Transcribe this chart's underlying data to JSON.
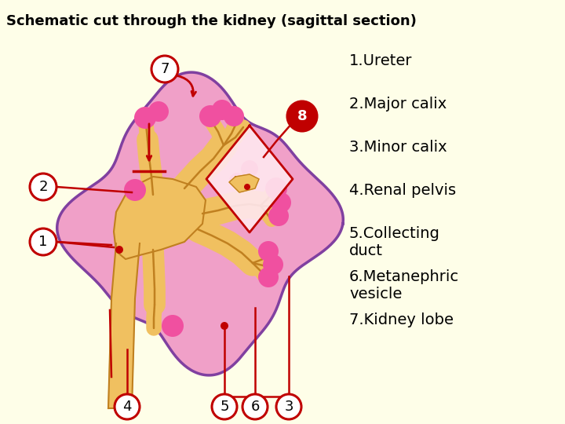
{
  "title": "Schematic cut through the kidney (sagittal section)",
  "bg": "#FEFEE8",
  "colors": {
    "kidney_fill": "#F0A0C8",
    "kidney_border": "#8040A0",
    "pelvis_fill": "#F0C060",
    "pelvis_border": "#C08020",
    "pink_dark": "#F050A0",
    "red": "#C00000",
    "white": "#FFFFFF",
    "diamond_fill": "#FFE8F0",
    "yellow_inner": "#F0C060"
  },
  "legend": [
    "1.Ureter",
    "2.Major calix",
    "3.Minor calix",
    "4.Renal pelvis",
    "5.Collecting\nduct",
    "6.Metanephric\nvesicle",
    "7.Kidney lobe"
  ]
}
